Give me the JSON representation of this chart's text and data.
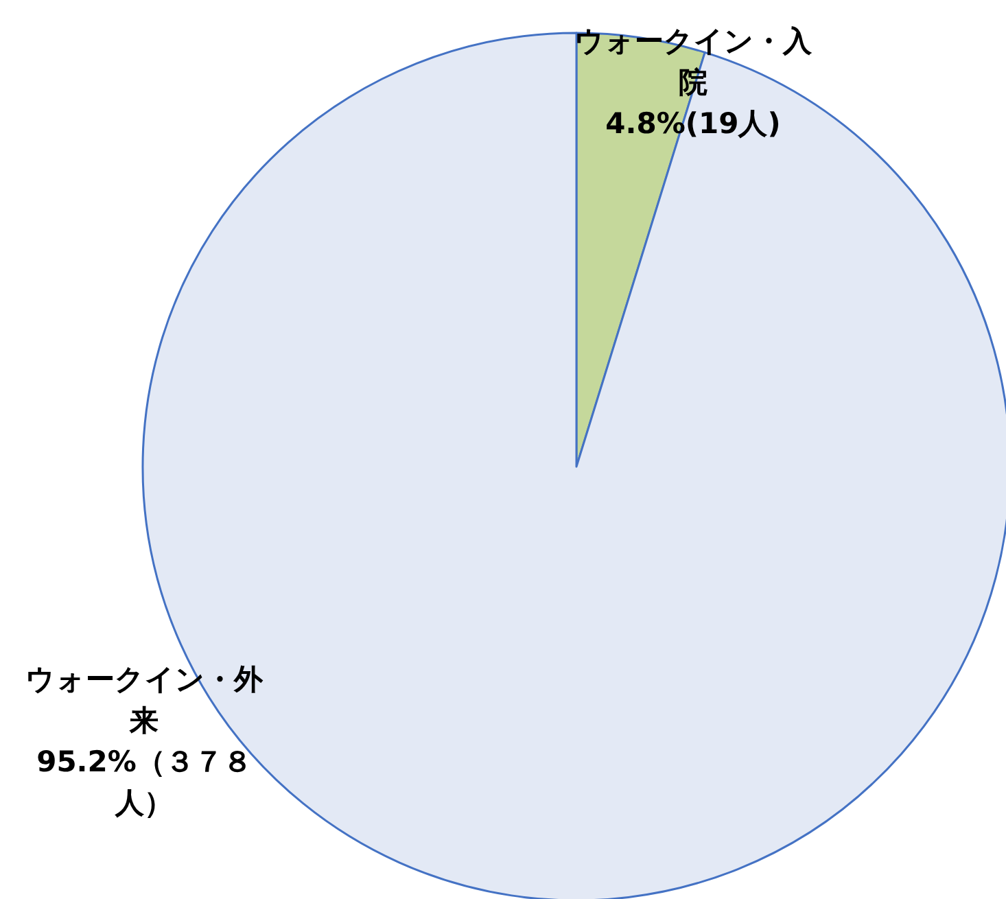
{
  "chart_data": {
    "type": "pie",
    "categories": [
      "ウォークイン・入院",
      "ウォークイン・外来"
    ],
    "values": [
      19,
      378
    ],
    "value_labels": [
      "4.8%(19人)",
      "95.2%（３７８人）"
    ],
    "colors": [
      "#c5d89b",
      "#e3e9f5"
    ]
  }
}
